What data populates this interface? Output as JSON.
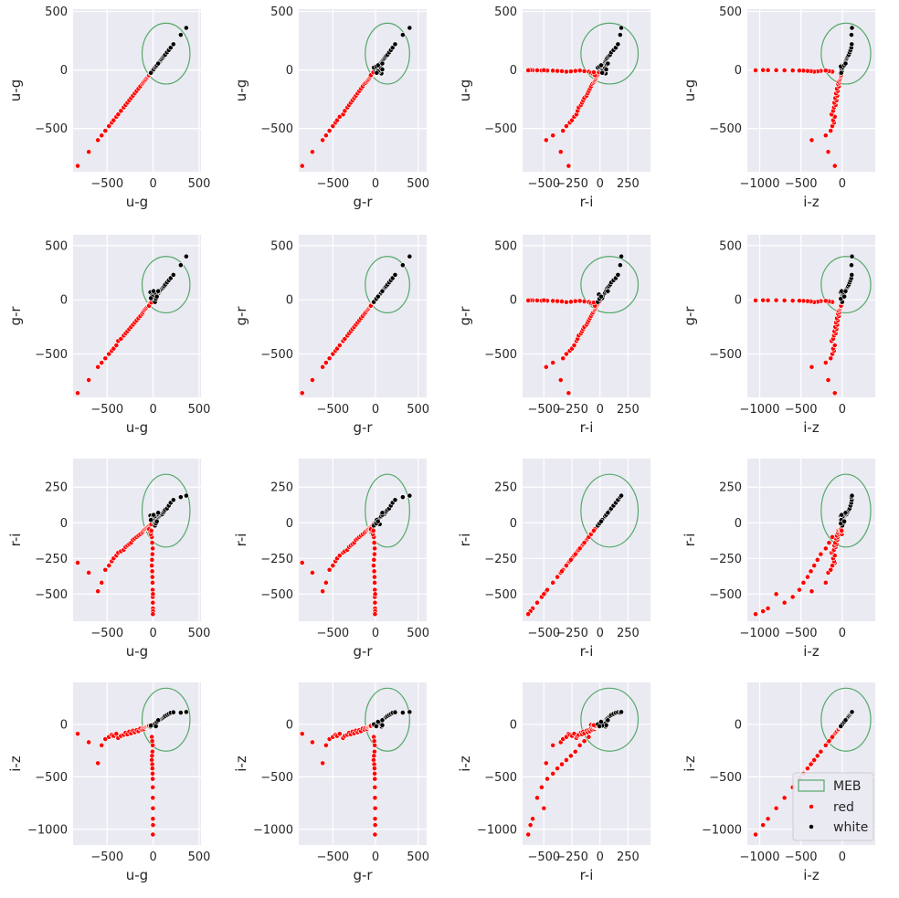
{
  "colors": {
    "panel_bg": "#EAEAF2",
    "grid": "#FFFFFF",
    "red": "#FF0000",
    "white_class": "#000000",
    "meb": "#55A868",
    "text": "#262626"
  },
  "chart_data": {
    "type": "scatter",
    "variables": [
      "u-g",
      "g-r",
      "r-i",
      "i-z"
    ],
    "grid": true,
    "legend": {
      "placement": "bottom-right of last subplot",
      "entries": [
        "MEB",
        "red",
        "white"
      ]
    },
    "ranges": {
      "u-g": [
        -870,
        520
      ],
      "g-r": [
        -900,
        600
      ],
      "r-i": [
        -690,
        450
      ],
      "i-z": [
        -1150,
        400
      ]
    },
    "ticks": {
      "u-g": [
        -500,
        0,
        500
      ],
      "g-r": [
        -500,
        0,
        500
      ],
      "r-i": [
        -500,
        -250,
        0,
        250
      ],
      "i-z": [
        -1000,
        -500,
        0
      ]
    },
    "meb": {
      "center": {
        "u-g": 140,
        "g-r": 140,
        "r-i": 85,
        "i-z": 45
      },
      "radius": {
        "u-g": 260,
        "g-r": 260,
        "r-i": 255,
        "i-z": 300
      }
    },
    "series": [
      {
        "name": "red",
        "points": [
          [
            -820,
            -860,
            -280,
            -90
          ],
          [
            -700,
            -740,
            -350,
            -170
          ],
          [
            -600,
            -620,
            -480,
            -370
          ],
          [
            -560,
            -580,
            -420,
            -200
          ],
          [
            -520,
            -540,
            -330,
            -140
          ],
          [
            -480,
            -500,
            -300,
            -120
          ],
          [
            -450,
            -470,
            -270,
            -100
          ],
          [
            -430,
            -450,
            -250,
            -110
          ],
          [
            -400,
            -420,
            -230,
            -90
          ],
          [
            -380,
            -380,
            -210,
            -130
          ],
          [
            -350,
            -360,
            -200,
            -110
          ],
          [
            -320,
            -330,
            -190,
            -100
          ],
          [
            -300,
            -310,
            -170,
            -80
          ],
          [
            -280,
            -290,
            -160,
            -95
          ],
          [
            -260,
            -270,
            -150,
            -70
          ],
          [
            -240,
            -250,
            -140,
            -85
          ],
          [
            -220,
            -230,
            -120,
            -60
          ],
          [
            -200,
            -210,
            -110,
            -75
          ],
          [
            -180,
            -190,
            -100,
            -55
          ],
          [
            -160,
            -170,
            -90,
            -65
          ],
          [
            -140,
            -150,
            -80,
            -40
          ],
          [
            -120,
            -130,
            -70,
            -50
          ],
          [
            -110,
            -115,
            -60,
            -35
          ],
          [
            -100,
            -100,
            -50,
            -45
          ],
          [
            -90,
            -90,
            -45,
            -30
          ],
          [
            -80,
            -80,
            -40,
            -25
          ],
          [
            -70,
            -70,
            -35,
            -20
          ],
          [
            -60,
            -60,
            -30,
            -18
          ],
          [
            -50,
            -50,
            -25,
            -15
          ],
          [
            -40,
            -40,
            -20,
            -12
          ],
          [
            -30,
            -30,
            -15,
            -10
          ],
          [
            -20,
            -20,
            -10,
            -8
          ],
          [
            -15,
            -20,
            -100,
            -120
          ],
          [
            -10,
            -15,
            -140,
            -160
          ],
          [
            -5,
            -10,
            -180,
            -200
          ],
          [
            -8,
            -12,
            -220,
            -260
          ],
          [
            -12,
            -18,
            -260,
            -300
          ],
          [
            -15,
            -22,
            -300,
            -340
          ],
          [
            -10,
            -15,
            -340,
            -380
          ],
          [
            -8,
            -12,
            -380,
            -420
          ],
          [
            -6,
            -10,
            -420,
            -470
          ],
          [
            -5,
            -8,
            -470,
            -520
          ],
          [
            -4,
            -8,
            -520,
            -600
          ],
          [
            -3,
            -6,
            -560,
            -700
          ],
          [
            -2,
            -5,
            -600,
            -900
          ],
          [
            -1,
            -4,
            -620,
            -960
          ],
          [
            -3,
            -6,
            -640,
            -1050
          ],
          [
            -2,
            -4,
            -500,
            -800
          ],
          [
            -25,
            -30,
            -80,
            -5
          ],
          [
            -35,
            -40,
            -60,
            -10
          ],
          [
            -45,
            -55,
            -45,
            -15
          ],
          [
            -20,
            -25,
            -55,
            -8
          ]
        ]
      },
      {
        "name": "white",
        "points": [
          [
            0,
            0,
            5,
            5
          ],
          [
            10,
            12,
            10,
            8
          ],
          [
            20,
            25,
            20,
            12
          ],
          [
            30,
            30,
            25,
            15
          ],
          [
            40,
            45,
            30,
            20
          ],
          [
            50,
            50,
            35,
            25
          ],
          [
            60,
            62,
            40,
            30
          ],
          [
            70,
            75,
            45,
            38
          ],
          [
            80,
            85,
            50,
            45
          ],
          [
            90,
            95,
            55,
            50
          ],
          [
            100,
            105,
            60,
            55
          ],
          [
            110,
            115,
            70,
            62
          ],
          [
            120,
            125,
            80,
            70
          ],
          [
            130,
            140,
            90,
            80
          ],
          [
            150,
            160,
            100,
            90
          ],
          [
            170,
            180,
            120,
            100
          ],
          [
            190,
            200,
            140,
            110
          ],
          [
            220,
            230,
            160,
            115
          ],
          [
            300,
            320,
            180,
            112
          ],
          [
            360,
            400,
            190,
            118
          ],
          [
            -20,
            60,
            40,
            -10
          ],
          [
            -30,
            70,
            50,
            -20
          ],
          [
            -15,
            40,
            30,
            -5
          ],
          [
            10,
            20,
            15,
            2
          ],
          [
            25,
            50,
            -10,
            10
          ],
          [
            35,
            20,
            5,
            -15
          ],
          [
            45,
            70,
            60,
            30
          ],
          [
            -10,
            30,
            25,
            -2
          ],
          [
            15,
            65,
            45,
            5
          ],
          [
            5,
            80,
            55,
            -8
          ],
          [
            -25,
            15,
            20,
            -12
          ],
          [
            20,
            -20,
            -20,
            0
          ],
          [
            30,
            10,
            -5,
            -18
          ],
          [
            40,
            30,
            10,
            25
          ],
          [
            55,
            80,
            70,
            40
          ]
        ]
      }
    ]
  }
}
